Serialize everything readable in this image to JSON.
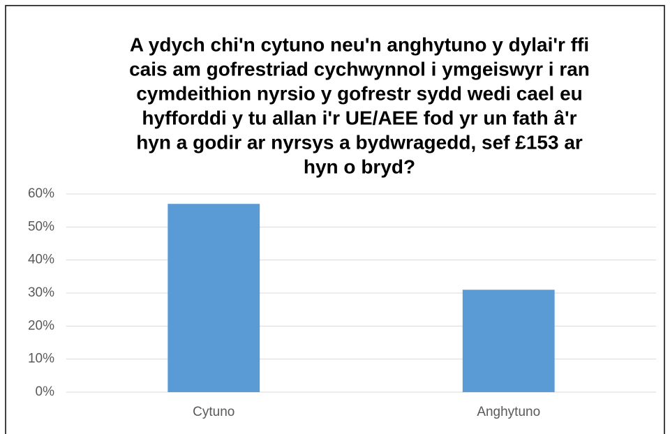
{
  "chart_data": {
    "type": "bar",
    "title": [
      "A ydych chi'n cytuno neu'n anghytuno y dylai'r ffi",
      "cais am gofrestriad cychwynnol i ymgeiswyr i ran",
      "cymdeithion nyrsio y gofrestr sydd wedi cael eu",
      "hyfforddi y tu allan i'r UE/AEE fod yr un fath â'r",
      "hyn a godir ar nyrsys a bydwragedd, sef £153 ar",
      "hyn o bryd?"
    ],
    "categories": [
      "Cytuno",
      "Anghytuno"
    ],
    "values": [
      57,
      31
    ],
    "color": "#5b9bd5",
    "ylim": [
      0,
      60
    ],
    "yticks": [
      {
        "value": 0,
        "label": "0%"
      },
      {
        "value": 10,
        "label": "10%"
      },
      {
        "value": 20,
        "label": "20%"
      },
      {
        "value": 30,
        "label": "30%"
      },
      {
        "value": 40,
        "label": "40%"
      },
      {
        "value": 50,
        "label": "50%"
      },
      {
        "value": 60,
        "label": "60%"
      }
    ],
    "grid": true
  }
}
